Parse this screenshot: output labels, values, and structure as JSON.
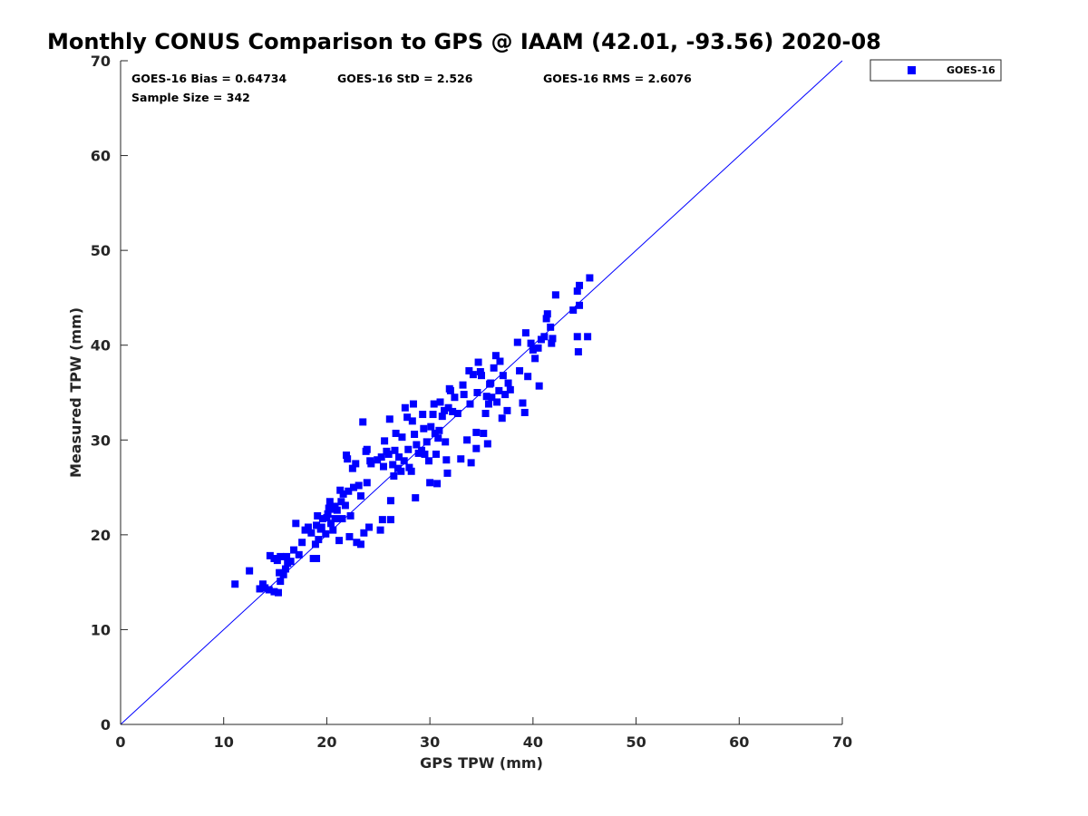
{
  "chart_data": {
    "type": "scatter",
    "title": "Monthly CONUS Comparison to GPS @ IAAM (42.01, -93.56) 2020-08",
    "xlabel": "GPS TPW (mm)",
    "ylabel": "Measured TPW (mm)",
    "xlim": [
      0,
      70
    ],
    "ylim": [
      0,
      70
    ],
    "xticks": [
      "0",
      "10",
      "20",
      "30",
      "40",
      "50",
      "60",
      "70"
    ],
    "yticks": [
      "0",
      "10",
      "20",
      "30",
      "40",
      "50",
      "60",
      "70"
    ],
    "grid": false,
    "legend_position": "outside top-right",
    "one_to_one_line": true,
    "line_color": "#0000ff",
    "marker": "square",
    "annotations": {
      "bias": "GOES-16 Bias = 0.64734",
      "std": "GOES-16 StD = 2.526",
      "rms": "GOES-16 RMS = 2.6076",
      "sample": "Sample Size = 342"
    },
    "series": [
      {
        "name": "GOES-16",
        "color": "#0000ff",
        "points": [
          [
            11.1,
            14.8
          ],
          [
            12.5,
            16.2
          ],
          [
            13.5,
            14.3
          ],
          [
            13.8,
            14.8
          ],
          [
            14.0,
            14.4
          ],
          [
            14.4,
            14.2
          ],
          [
            14.9,
            14.0
          ],
          [
            15.3,
            13.9
          ],
          [
            14.5,
            17.8
          ],
          [
            14.9,
            17.5
          ],
          [
            15.2,
            17.3
          ],
          [
            15.5,
            17.7
          ],
          [
            15.4,
            16.0
          ],
          [
            15.5,
            15.1
          ],
          [
            15.8,
            15.8
          ],
          [
            16.0,
            16.4
          ],
          [
            16.2,
            17.0
          ],
          [
            16.5,
            17.2
          ],
          [
            16.1,
            17.7
          ],
          [
            16.8,
            18.4
          ],
          [
            17.0,
            21.2
          ],
          [
            17.3,
            17.9
          ],
          [
            17.6,
            19.2
          ],
          [
            17.9,
            20.5
          ],
          [
            18.2,
            20.8
          ],
          [
            18.5,
            20.2
          ],
          [
            18.7,
            17.5
          ],
          [
            19.0,
            17.5
          ],
          [
            18.9,
            19.0
          ],
          [
            19.2,
            19.5
          ],
          [
            19.0,
            21.0
          ],
          [
            19.1,
            22.0
          ],
          [
            19.4,
            20.6
          ],
          [
            19.6,
            21.7
          ],
          [
            19.5,
            20.8
          ],
          [
            19.9,
            20.1
          ],
          [
            20.0,
            21.8
          ],
          [
            20.2,
            22.8
          ],
          [
            20.3,
            23.5
          ],
          [
            20.4,
            21.2
          ],
          [
            20.1,
            22.2
          ],
          [
            20.6,
            20.5
          ],
          [
            20.8,
            21.7
          ],
          [
            20.5,
            22.7
          ],
          [
            20.8,
            23.0
          ],
          [
            21.0,
            22.6
          ],
          [
            21.2,
            19.4
          ],
          [
            21.4,
            23.5
          ],
          [
            21.3,
            24.7
          ],
          [
            21.5,
            21.7
          ],
          [
            21.6,
            24.3
          ],
          [
            21.8,
            23.1
          ],
          [
            21.9,
            28.4
          ],
          [
            22.0,
            28.0
          ],
          [
            22.1,
            24.6
          ],
          [
            22.2,
            19.8
          ],
          [
            22.3,
            22.0
          ],
          [
            22.6,
            25.0
          ],
          [
            22.8,
            27.5
          ],
          [
            22.5,
            27.0
          ],
          [
            22.9,
            19.2
          ],
          [
            23.1,
            25.2
          ],
          [
            23.3,
            19.0
          ],
          [
            23.3,
            24.1
          ],
          [
            23.5,
            31.9
          ],
          [
            23.6,
            20.2
          ],
          [
            23.8,
            28.8
          ],
          [
            23.9,
            25.5
          ],
          [
            23.9,
            29.0
          ],
          [
            24.1,
            20.8
          ],
          [
            24.2,
            27.8
          ],
          [
            24.3,
            27.5
          ],
          [
            24.9,
            27.9
          ],
          [
            25.2,
            20.5
          ],
          [
            25.3,
            28.2
          ],
          [
            25.4,
            21.6
          ],
          [
            25.5,
            27.2
          ],
          [
            25.6,
            29.9
          ],
          [
            25.8,
            28.8
          ],
          [
            26.0,
            28.5
          ],
          [
            26.1,
            32.2
          ],
          [
            26.2,
            21.6
          ],
          [
            26.2,
            23.6
          ],
          [
            26.4,
            27.4
          ],
          [
            26.5,
            26.2
          ],
          [
            26.6,
            28.9
          ],
          [
            26.7,
            30.7
          ],
          [
            26.9,
            27.0
          ],
          [
            27.0,
            28.2
          ],
          [
            27.2,
            26.7
          ],
          [
            27.3,
            30.3
          ],
          [
            27.5,
            27.8
          ],
          [
            27.6,
            33.4
          ],
          [
            27.8,
            32.4
          ],
          [
            27.9,
            29.0
          ],
          [
            28.0,
            27.1
          ],
          [
            28.2,
            26.7
          ],
          [
            28.3,
            32.0
          ],
          [
            28.4,
            33.8
          ],
          [
            28.5,
            30.6
          ],
          [
            28.6,
            23.9
          ],
          [
            28.7,
            29.5
          ],
          [
            28.9,
            28.6
          ],
          [
            29.2,
            28.9
          ],
          [
            29.3,
            32.7
          ],
          [
            29.4,
            31.2
          ],
          [
            29.5,
            28.5
          ],
          [
            29.7,
            29.8
          ],
          [
            29.9,
            27.8
          ],
          [
            30.0,
            25.5
          ],
          [
            30.1,
            31.4
          ],
          [
            30.3,
            32.7
          ],
          [
            30.4,
            33.8
          ],
          [
            30.5,
            30.7
          ],
          [
            30.6,
            28.5
          ],
          [
            30.7,
            25.4
          ],
          [
            30.8,
            30.2
          ],
          [
            30.9,
            31.0
          ],
          [
            31.0,
            34.0
          ],
          [
            31.2,
            32.5
          ],
          [
            31.4,
            33.1
          ],
          [
            31.5,
            29.8
          ],
          [
            31.6,
            27.9
          ],
          [
            31.7,
            26.5
          ],
          [
            31.8,
            33.4
          ],
          [
            31.9,
            35.4
          ],
          [
            32.0,
            35.2
          ],
          [
            32.2,
            33.0
          ],
          [
            32.4,
            34.5
          ],
          [
            32.7,
            32.8
          ],
          [
            33.0,
            28.0
          ],
          [
            33.2,
            35.8
          ],
          [
            33.3,
            34.8
          ],
          [
            33.6,
            30.0
          ],
          [
            33.8,
            37.3
          ],
          [
            33.9,
            33.8
          ],
          [
            34.0,
            27.6
          ],
          [
            34.2,
            36.9
          ],
          [
            34.5,
            30.8
          ],
          [
            34.5,
            29.1
          ],
          [
            34.6,
            35.0
          ],
          [
            34.7,
            38.2
          ],
          [
            34.9,
            37.2
          ],
          [
            35.0,
            36.8
          ],
          [
            35.2,
            30.7
          ],
          [
            35.4,
            32.8
          ],
          [
            35.5,
            34.6
          ],
          [
            35.6,
            29.6
          ],
          [
            35.7,
            33.8
          ],
          [
            35.8,
            35.9
          ],
          [
            35.9,
            36.0
          ],
          [
            36.0,
            34.5
          ],
          [
            36.2,
            37.6
          ],
          [
            36.4,
            38.9
          ],
          [
            36.5,
            34.0
          ],
          [
            36.7,
            35.2
          ],
          [
            36.8,
            38.3
          ],
          [
            37.0,
            32.3
          ],
          [
            37.1,
            36.8
          ],
          [
            37.3,
            34.8
          ],
          [
            37.5,
            33.1
          ],
          [
            37.6,
            36.0
          ],
          [
            37.8,
            35.3
          ],
          [
            38.5,
            40.3
          ],
          [
            38.7,
            37.3
          ],
          [
            39.0,
            33.9
          ],
          [
            39.2,
            32.9
          ],
          [
            39.3,
            41.3
          ],
          [
            39.5,
            36.7
          ],
          [
            39.8,
            40.2
          ],
          [
            40.0,
            39.5
          ],
          [
            40.2,
            38.6
          ],
          [
            40.5,
            39.7
          ],
          [
            40.6,
            35.7
          ],
          [
            40.8,
            40.6
          ],
          [
            41.1,
            40.9
          ],
          [
            41.3,
            42.8
          ],
          [
            41.4,
            43.3
          ],
          [
            41.7,
            41.9
          ],
          [
            41.8,
            40.2
          ],
          [
            41.9,
            40.7
          ],
          [
            42.2,
            45.3
          ],
          [
            43.9,
            43.7
          ],
          [
            44.3,
            40.9
          ],
          [
            44.3,
            45.7
          ],
          [
            44.5,
            46.3
          ],
          [
            44.4,
            39.3
          ],
          [
            44.5,
            44.2
          ],
          [
            45.3,
            40.9
          ],
          [
            45.5,
            47.1
          ]
        ]
      }
    ]
  }
}
